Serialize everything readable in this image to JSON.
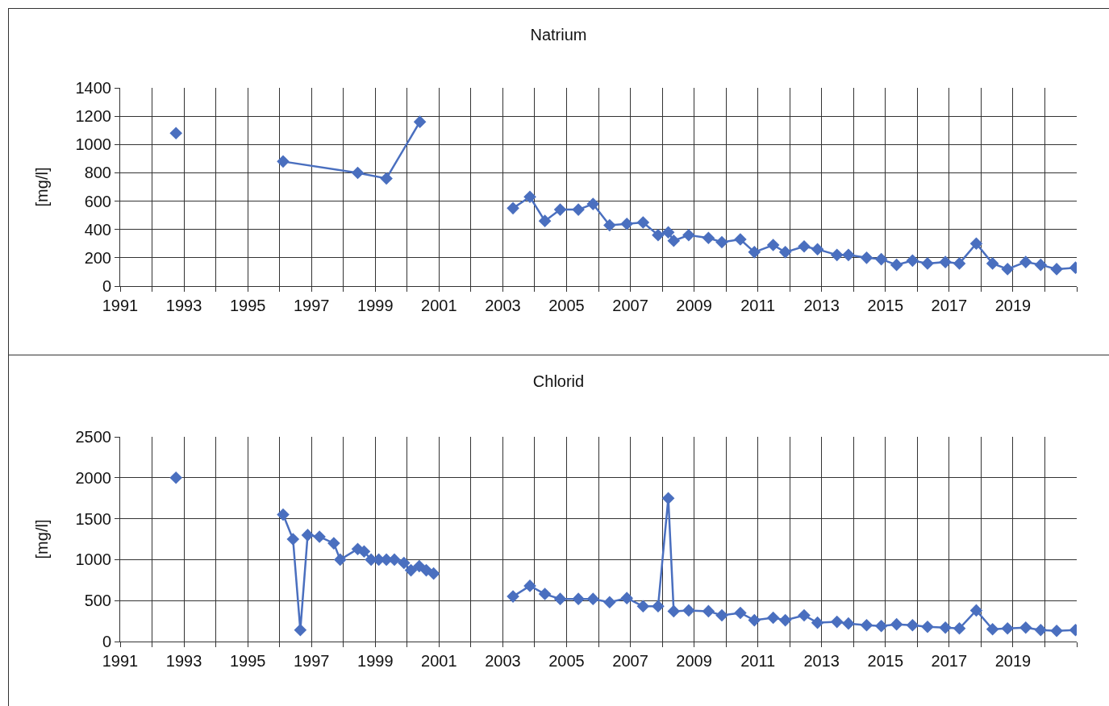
{
  "chart_data": [
    {
      "type": "line",
      "title": "Natrium",
      "ylabel": "[mg/l]",
      "xlim": [
        1991,
        2021
      ],
      "xticks": [
        1991,
        {
          "value": 1992,
          "label": null
        },
        1993,
        {
          "value": 1994,
          "label": null
        },
        1995,
        {
          "value": 1996,
          "label": null
        },
        1997,
        {
          "value": 1998,
          "label": null
        },
        1999,
        {
          "value": 2000,
          "label": null
        },
        2001,
        {
          "value": 2002,
          "label": null
        },
        2003,
        {
          "value": 2004,
          "label": null
        },
        2005,
        {
          "value": 2006,
          "label": null
        },
        2007,
        {
          "value": 2008,
          "label": null
        },
        2009,
        {
          "value": 2010,
          "label": null
        },
        2011,
        {
          "value": 2012,
          "label": null
        },
        2013,
        {
          "value": 2014,
          "label": null
        },
        2015,
        {
          "value": 2016,
          "label": null
        },
        2017,
        {
          "value": 2018,
          "label": null
        },
        2019,
        {
          "value": 2020,
          "label": null
        },
        {
          "value": 2021,
          "label": null
        }
      ],
      "ylim": [
        0,
        1400
      ],
      "yticks": [
        0,
        200,
        400,
        600,
        800,
        1000,
        1200,
        1400
      ],
      "grid": true,
      "marker": "diamond",
      "line_style": "solid",
      "series": [
        {
          "color": "#4a6fbf",
          "x": [
            1992.75,
            1994.0,
            1996.11,
            1998.45,
            1999.35,
            2000.4,
            2001.8,
            2003.32,
            2003.85,
            2004.32,
            2004.8,
            2005.37,
            2005.83,
            2006.35,
            2006.89,
            2007.4,
            2007.87,
            2008.19,
            2008.36,
            2008.83,
            2009.45,
            2009.87,
            2010.45,
            2010.89,
            2011.48,
            2011.86,
            2012.45,
            2012.87,
            2013.48,
            2013.84,
            2014.41,
            2014.87,
            2015.35,
            2015.85,
            2016.32,
            2016.88,
            2017.32,
            2017.85,
            2018.36,
            2018.83,
            2019.4,
            2019.87,
            2020.37,
            2020.96
          ],
          "values": [
            1080,
            null,
            880,
            800,
            760,
            1160,
            null,
            550,
            630,
            460,
            540,
            540,
            580,
            430,
            440,
            450,
            360,
            380,
            320,
            360,
            340,
            310,
            330,
            240,
            290,
            240,
            280,
            260,
            220,
            220,
            200,
            190,
            150,
            180,
            160,
            170,
            160,
            300,
            160,
            120,
            170,
            150,
            120,
            130
          ]
        }
      ]
    },
    {
      "type": "line",
      "title": "Chlorid",
      "ylabel": "[mg/l]",
      "xlim": [
        1991,
        2021
      ],
      "xticks": [
        1991,
        {
          "value": 1992,
          "label": null
        },
        1993,
        {
          "value": 1994,
          "label": null
        },
        1995,
        {
          "value": 1996,
          "label": null
        },
        1997,
        {
          "value": 1998,
          "label": null
        },
        1999,
        {
          "value": 2000,
          "label": null
        },
        2001,
        {
          "value": 2002,
          "label": null
        },
        2003,
        {
          "value": 2004,
          "label": null
        },
        2005,
        {
          "value": 2006,
          "label": null
        },
        2007,
        {
          "value": 2008,
          "label": null
        },
        2009,
        {
          "value": 2010,
          "label": null
        },
        2011,
        {
          "value": 2012,
          "label": null
        },
        2013,
        {
          "value": 2014,
          "label": null
        },
        2015,
        {
          "value": 2016,
          "label": null
        },
        2017,
        {
          "value": 2018,
          "label": null
        },
        2019,
        {
          "value": 2020,
          "label": null
        },
        {
          "value": 2021,
          "label": null
        }
      ],
      "ylim": [
        0,
        2500
      ],
      "yticks": [
        0,
        500,
        1000,
        1500,
        2000,
        2500
      ],
      "grid": true,
      "marker": "diamond",
      "line_style": "solid",
      "series": [
        {
          "color": "#4a6fbf",
          "x": [
            1992.75,
            1994.0,
            1996.11,
            1996.42,
            1996.65,
            1996.88,
            1997.25,
            1997.7,
            1997.9,
            1998.45,
            1998.65,
            1998.87,
            1999.11,
            1999.35,
            1999.6,
            1999.9,
            2000.12,
            2000.38,
            2000.6,
            2000.83,
            2002.0,
            2003.32,
            2003.85,
            2004.32,
            2004.8,
            2005.37,
            2005.83,
            2006.35,
            2006.89,
            2007.4,
            2007.87,
            2008.19,
            2008.36,
            2008.83,
            2009.45,
            2009.87,
            2010.45,
            2010.89,
            2011.48,
            2011.86,
            2012.45,
            2012.87,
            2013.48,
            2013.84,
            2014.41,
            2014.87,
            2015.35,
            2015.85,
            2016.32,
            2016.88,
            2017.32,
            2017.85,
            2018.36,
            2018.83,
            2019.4,
            2019.87,
            2020.37,
            2020.96
          ],
          "values": [
            2000,
            null,
            1550,
            1250,
            140,
            1300,
            1280,
            1200,
            1000,
            1130,
            1100,
            1000,
            1000,
            1000,
            1000,
            960,
            870,
            920,
            870,
            830,
            null,
            550,
            680,
            580,
            520,
            520,
            520,
            480,
            530,
            430,
            430,
            1750,
            370,
            380,
            370,
            320,
            350,
            260,
            290,
            260,
            320,
            230,
            240,
            220,
            200,
            190,
            210,
            200,
            180,
            170,
            160,
            380,
            150,
            160,
            170,
            140,
            130,
            140
          ]
        }
      ]
    }
  ]
}
